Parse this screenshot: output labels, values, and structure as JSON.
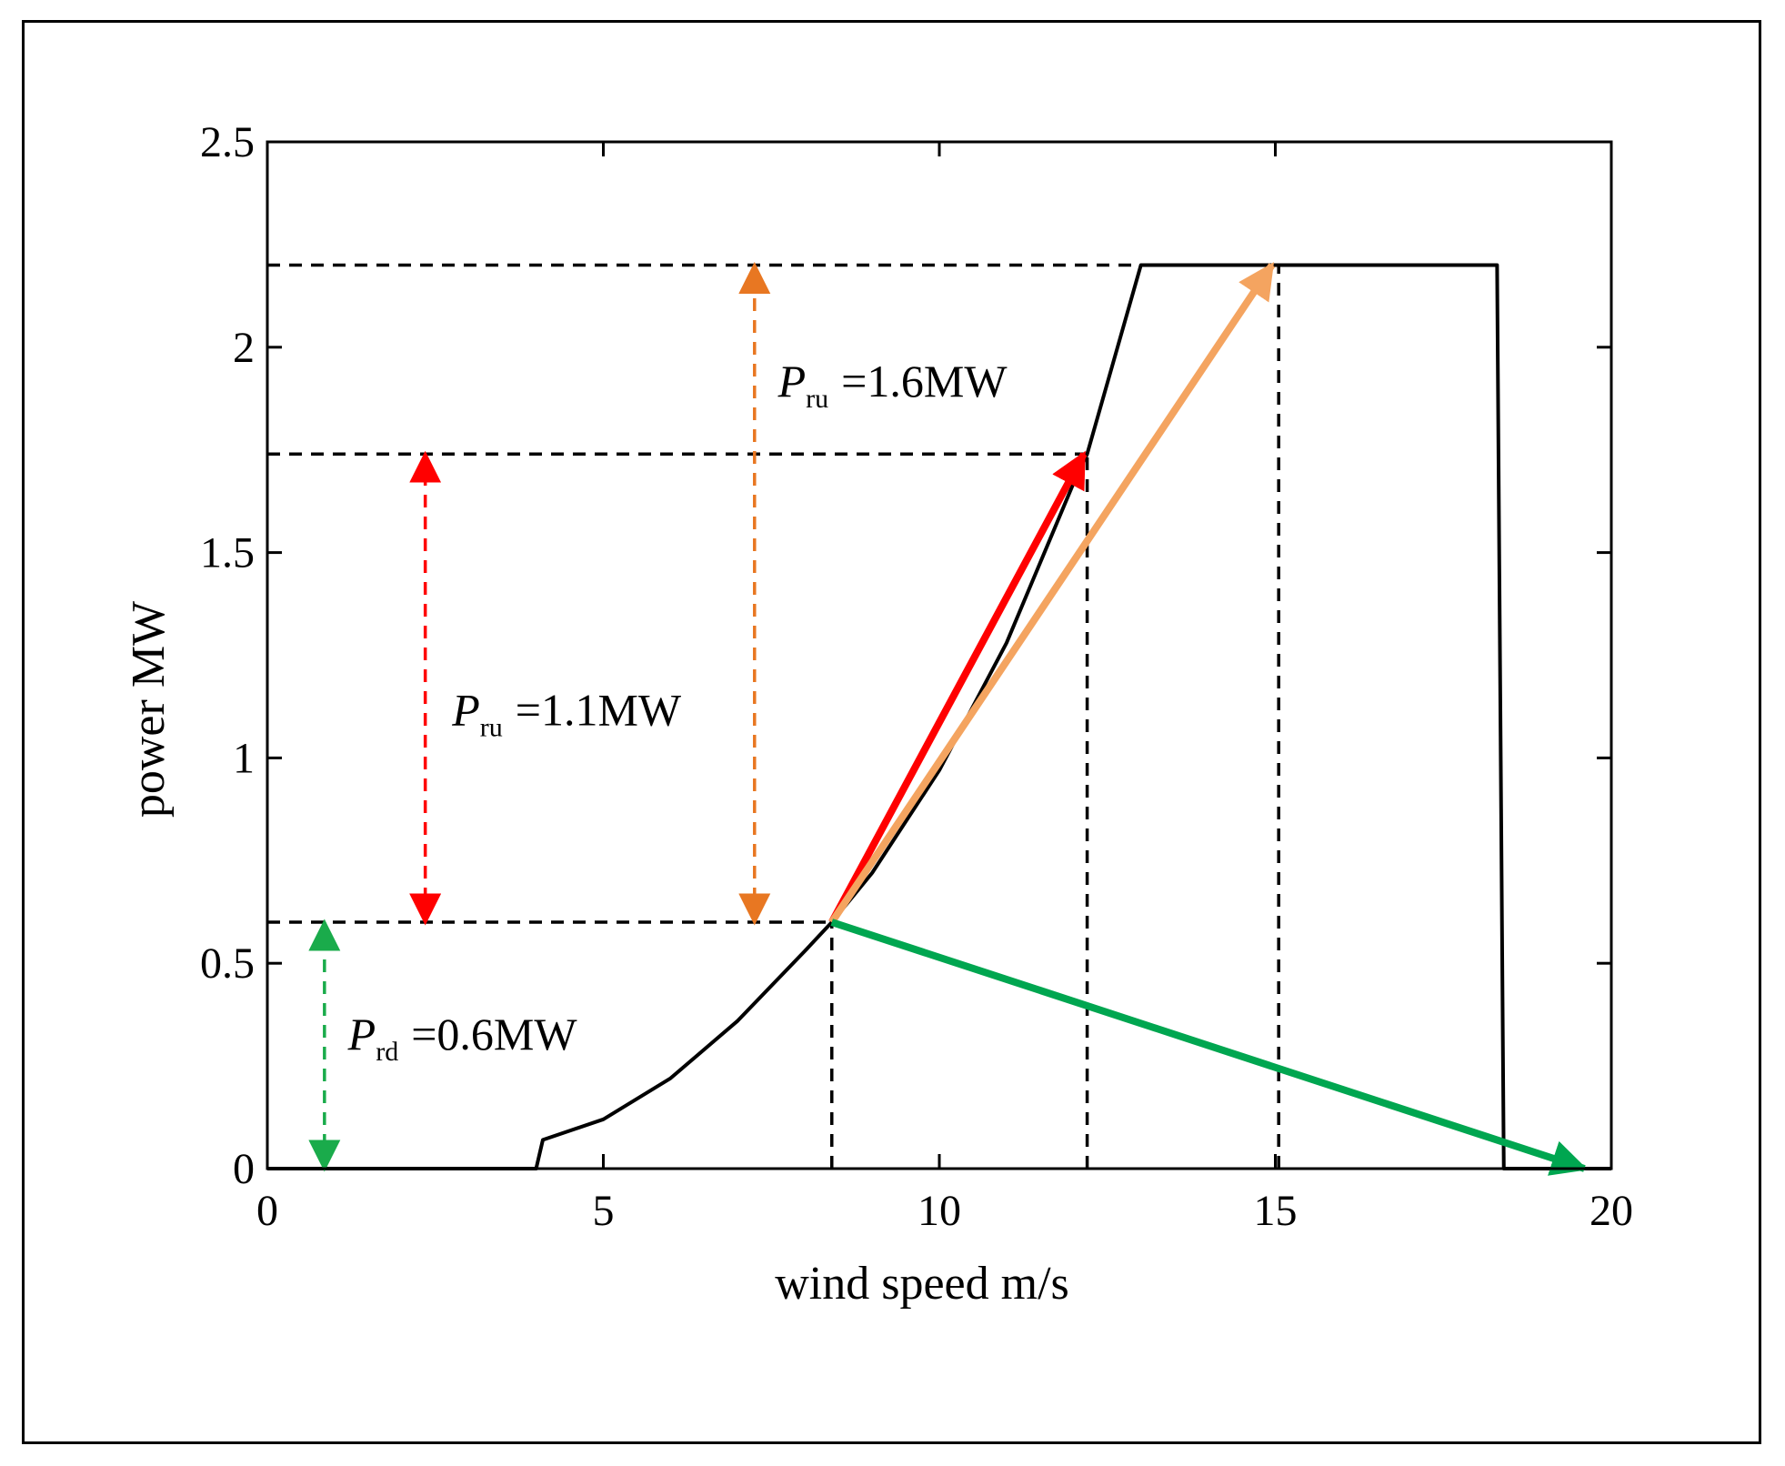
{
  "chart_data": {
    "type": "line",
    "title": "",
    "xlabel": "wind speed m/s",
    "ylabel": "power MW",
    "xlim": [
      0,
      20
    ],
    "ylim": [
      0,
      2.5
    ],
    "xticks": [
      0,
      5,
      10,
      15,
      20
    ],
    "xtick_labels": [
      "0",
      "5",
      "10",
      "15",
      "20"
    ],
    "yticks": [
      0,
      0.5,
      1,
      1.5,
      2,
      2.5
    ],
    "ytick_labels": [
      "0",
      "0.5",
      "1",
      "1.5",
      "2",
      "2.5"
    ],
    "grid": false,
    "series": [
      {
        "name": "power curve",
        "color": "#000000",
        "x": [
          0,
          4,
          4.1,
          5,
          6,
          7,
          8,
          8.4,
          9,
          10,
          11,
          12,
          12.2,
          13,
          13.05,
          18.3,
          18.4,
          20
        ],
        "y": [
          0,
          0,
          0.07,
          0.12,
          0.22,
          0.36,
          0.53,
          0.6,
          0.72,
          0.97,
          1.28,
          1.67,
          1.74,
          2.2,
          2.2,
          2.2,
          0,
          0
        ]
      }
    ],
    "reference_lines": [
      {
        "name": "h-2.2",
        "x": [
          0,
          14.9
        ],
        "y": [
          2.2,
          2.2
        ]
      },
      {
        "name": "h-1.74",
        "x": [
          0,
          12.2
        ],
        "y": [
          1.74,
          1.74
        ]
      },
      {
        "name": "h-0.6",
        "x": [
          0,
          8.4
        ],
        "y": [
          0.6,
          0.6
        ]
      },
      {
        "name": "v-8.4",
        "x": [
          8.4,
          8.4
        ],
        "y": [
          0,
          0.6
        ]
      },
      {
        "name": "v-12.2",
        "x": [
          12.2,
          12.2
        ],
        "y": [
          0,
          1.74
        ]
      },
      {
        "name": "v-15",
        "x": [
          15.05,
          15.05
        ],
        "y": [
          0,
          2.2
        ]
      }
    ],
    "ramp_arrows": [
      {
        "name": "red",
        "color": "#ff0000",
        "from": [
          8.4,
          0.6
        ],
        "to": [
          12.15,
          1.74
        ]
      },
      {
        "name": "orange",
        "color": "#f4a460",
        "from": [
          8.4,
          0.6
        ],
        "to": [
          14.95,
          2.2
        ]
      },
      {
        "name": "green",
        "color": "#00a650",
        "from": [
          8.4,
          0.6
        ],
        "to": [
          19.6,
          0
        ]
      }
    ],
    "range_arrows": [
      {
        "name": "green",
        "color": "#1aab4b",
        "x": 0.85,
        "from": 0,
        "to": 0.6
      },
      {
        "name": "red",
        "color": "#ff0000",
        "x": 2.35,
        "from": 0.6,
        "to": 1.74
      },
      {
        "name": "orange",
        "color": "#e87722",
        "x": 7.25,
        "from": 0.6,
        "to": 2.2
      }
    ],
    "annotations": [
      {
        "name": "pru-16",
        "symbol": "P",
        "sub": "ru",
        "text": "=1.6MW",
        "x": 7.6,
        "y": 1.88
      },
      {
        "name": "pru-11",
        "symbol": "P",
        "sub": "ru",
        "text": "=1.1MW",
        "x": 2.75,
        "y": 1.08
      },
      {
        "name": "prd-06",
        "symbol": "P",
        "sub": "rd",
        "text": "=0.6MW",
        "x": 1.2,
        "y": 0.29
      }
    ]
  }
}
